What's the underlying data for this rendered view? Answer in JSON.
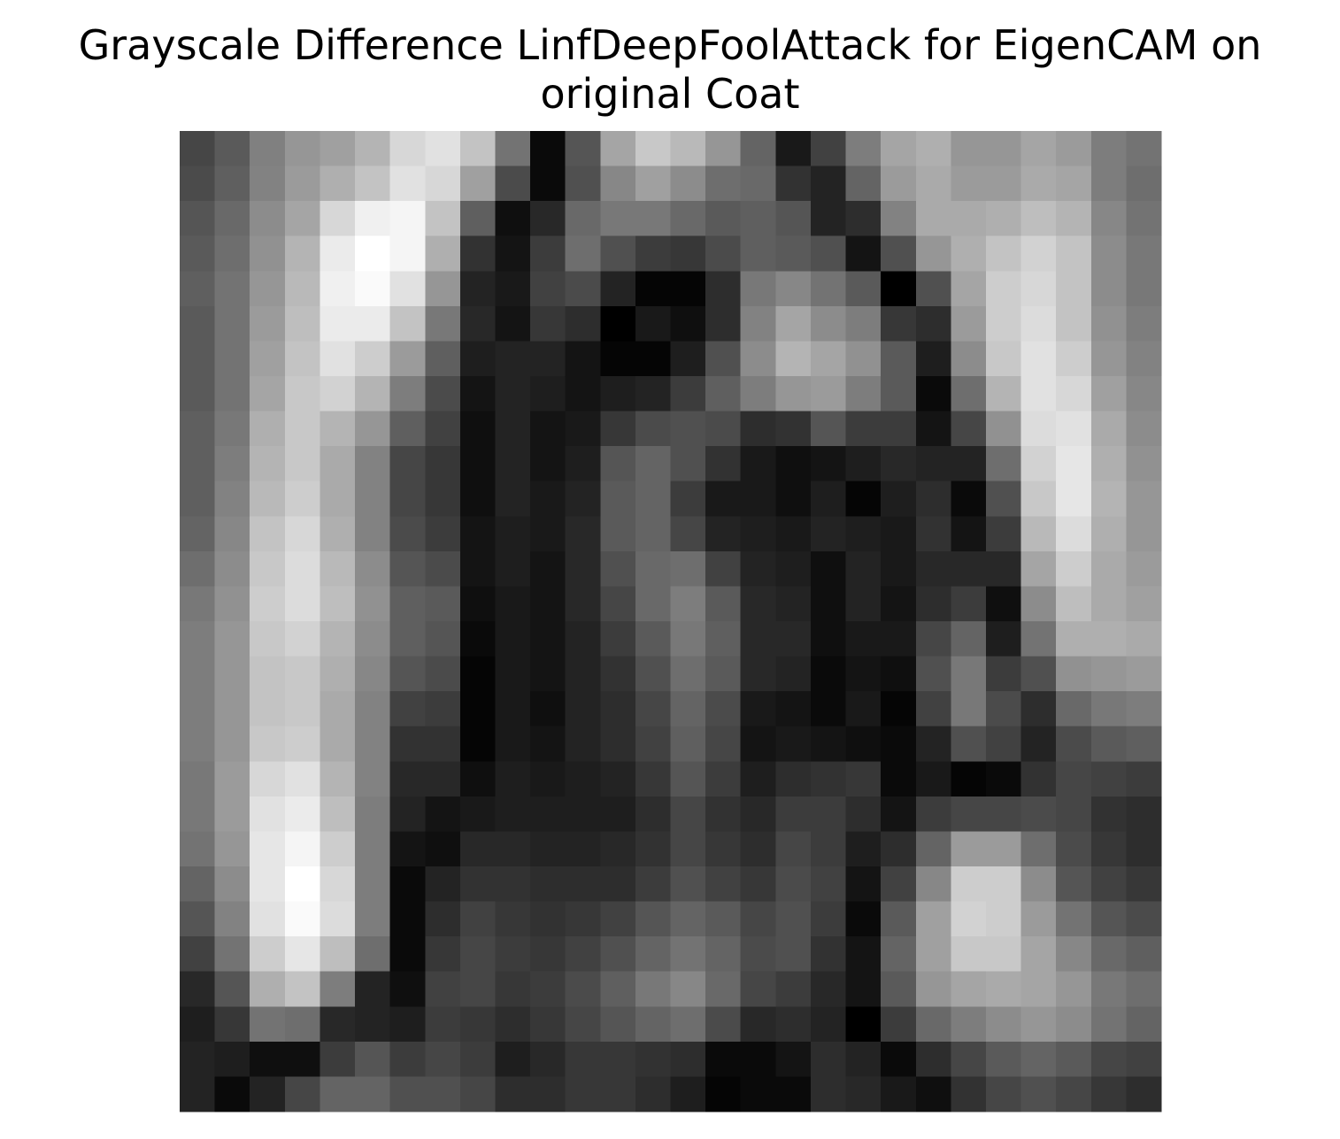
{
  "chart_data": {
    "type": "heatmap",
    "title": "Grayscale Difference LinfDeepFoolAttack for EigenCAM on original Coat",
    "colormap": "gray",
    "clim": [
      0,
      255
    ],
    "values": [
      [
        70,
        90,
        128,
        150,
        160,
        180,
        215,
        225,
        195,
        115,
        10,
        85,
        165,
        200,
        185,
        150,
        100,
        25,
        65,
        125,
        165,
        175,
        150,
        150,
        165,
        155,
        125,
        115
      ],
      [
        75,
        95,
        130,
        155,
        175,
        195,
        225,
        215,
        160,
        75,
        10,
        80,
        135,
        160,
        140,
        110,
        105,
        50,
        35,
        100,
        155,
        170,
        155,
        155,
        170,
        165,
        125,
        110
      ],
      [
        85,
        105,
        140,
        165,
        215,
        240,
        245,
        195,
        95,
        15,
        40,
        105,
        120,
        120,
        105,
        90,
        95,
        85,
        35,
        45,
        130,
        170,
        170,
        175,
        190,
        180,
        135,
        115
      ],
      [
        90,
        110,
        145,
        180,
        235,
        255,
        245,
        175,
        50,
        20,
        60,
        110,
        80,
        60,
        55,
        75,
        95,
        90,
        80,
        20,
        80,
        150,
        175,
        195,
        210,
        195,
        140,
        120
      ],
      [
        95,
        115,
        150,
        185,
        240,
        250,
        225,
        150,
        35,
        25,
        65,
        75,
        35,
        5,
        5,
        45,
        120,
        135,
        115,
        90,
        0,
        80,
        165,
        205,
        215,
        195,
        140,
        120
      ],
      [
        90,
        115,
        155,
        190,
        235,
        235,
        195,
        120,
        40,
        20,
        55,
        45,
        0,
        25,
        15,
        45,
        130,
        165,
        140,
        125,
        55,
        45,
        155,
        205,
        220,
        195,
        145,
        125
      ],
      [
        90,
        115,
        160,
        195,
        225,
        205,
        155,
        95,
        30,
        35,
        35,
        20,
        5,
        5,
        30,
        80,
        140,
        180,
        165,
        145,
        90,
        30,
        140,
        200,
        225,
        205,
        150,
        130
      ],
      [
        90,
        115,
        165,
        200,
        210,
        180,
        125,
        75,
        20,
        35,
        30,
        20,
        30,
        35,
        60,
        95,
        125,
        150,
        155,
        125,
        90,
        10,
        110,
        180,
        225,
        215,
        160,
        135
      ],
      [
        95,
        120,
        175,
        200,
        180,
        150,
        95,
        65,
        15,
        35,
        20,
        25,
        55,
        75,
        80,
        75,
        45,
        50,
        85,
        60,
        60,
        20,
        70,
        145,
        220,
        225,
        170,
        140
      ],
      [
        95,
        125,
        180,
        200,
        170,
        130,
        70,
        55,
        15,
        35,
        20,
        30,
        85,
        100,
        80,
        50,
        25,
        15,
        20,
        30,
        40,
        35,
        35,
        110,
        210,
        230,
        175,
        145
      ],
      [
        95,
        130,
        185,
        205,
        170,
        130,
        70,
        55,
        15,
        35,
        25,
        35,
        90,
        100,
        60,
        25,
        25,
        15,
        30,
        5,
        30,
        45,
        10,
        80,
        200,
        230,
        180,
        150
      ],
      [
        100,
        135,
        195,
        215,
        175,
        130,
        75,
        60,
        20,
        30,
        25,
        40,
        90,
        100,
        70,
        35,
        30,
        25,
        35,
        30,
        25,
        50,
        20,
        60,
        185,
        220,
        175,
        150
      ],
      [
        110,
        140,
        200,
        220,
        185,
        140,
        85,
        75,
        20,
        30,
        20,
        40,
        80,
        105,
        110,
        65,
        35,
        30,
        15,
        35,
        25,
        40,
        40,
        40,
        165,
        205,
        170,
        155
      ],
      [
        120,
        145,
        205,
        220,
        190,
        145,
        95,
        90,
        15,
        25,
        20,
        40,
        70,
        105,
        125,
        90,
        40,
        35,
        15,
        35,
        20,
        45,
        60,
        15,
        140,
        190,
        170,
        160
      ],
      [
        125,
        150,
        200,
        210,
        180,
        140,
        95,
        85,
        10,
        25,
        20,
        35,
        60,
        90,
        120,
        95,
        40,
        40,
        15,
        25,
        25,
        70,
        100,
        30,
        115,
        175,
        175,
        170
      ],
      [
        125,
        150,
        195,
        200,
        175,
        135,
        85,
        75,
        5,
        25,
        20,
        35,
        50,
        80,
        110,
        90,
        40,
        35,
        10,
        20,
        15,
        80,
        120,
        60,
        80,
        145,
        150,
        155
      ],
      [
        125,
        150,
        195,
        200,
        170,
        130,
        65,
        60,
        5,
        25,
        15,
        35,
        45,
        70,
        100,
        75,
        25,
        20,
        10,
        25,
        5,
        65,
        120,
        75,
        45,
        105,
        120,
        125
      ],
      [
        125,
        150,
        200,
        205,
        170,
        130,
        50,
        50,
        5,
        25,
        20,
        35,
        45,
        65,
        95,
        70,
        20,
        25,
        20,
        15,
        10,
        35,
        80,
        65,
        35,
        75,
        90,
        95
      ],
      [
        120,
        155,
        215,
        225,
        180,
        130,
        40,
        40,
        15,
        30,
        25,
        30,
        35,
        55,
        85,
        60,
        30,
        45,
        50,
        55,
        10,
        25,
        5,
        10,
        50,
        70,
        65,
        60
      ],
      [
        120,
        155,
        225,
        235,
        190,
        125,
        35,
        20,
        25,
        30,
        30,
        30,
        30,
        45,
        70,
        50,
        40,
        60,
        60,
        45,
        20,
        60,
        70,
        70,
        75,
        70,
        50,
        45
      ],
      [
        115,
        150,
        230,
        245,
        205,
        125,
        20,
        15,
        40,
        40,
        35,
        35,
        40,
        50,
        70,
        55,
        45,
        70,
        60,
        30,
        45,
        100,
        155,
        155,
        110,
        75,
        55,
        45
      ],
      [
        100,
        140,
        230,
        255,
        215,
        125,
        10,
        35,
        50,
        50,
        45,
        45,
        45,
        60,
        80,
        65,
        55,
        75,
        65,
        20,
        65,
        135,
        205,
        205,
        140,
        85,
        65,
        55
      ],
      [
        85,
        130,
        225,
        250,
        220,
        125,
        10,
        45,
        65,
        55,
        50,
        55,
        65,
        85,
        100,
        90,
        70,
        80,
        60,
        10,
        90,
        160,
        210,
        205,
        155,
        115,
        85,
        75
      ],
      [
        65,
        115,
        205,
        230,
        190,
        110,
        10,
        55,
        70,
        60,
        55,
        65,
        80,
        100,
        115,
        100,
        75,
        80,
        50,
        20,
        100,
        160,
        200,
        200,
        165,
        135,
        105,
        95
      ],
      [
        40,
        85,
        175,
        195,
        125,
        35,
        15,
        65,
        70,
        55,
        60,
        75,
        95,
        120,
        135,
        105,
        70,
        60,
        40,
        20,
        90,
        150,
        165,
        170,
        165,
        150,
        120,
        110
      ],
      [
        30,
        55,
        115,
        110,
        40,
        35,
        30,
        60,
        55,
        45,
        55,
        70,
        85,
        100,
        110,
        75,
        40,
        45,
        35,
        0,
        60,
        105,
        125,
        140,
        150,
        140,
        115,
        100
      ],
      [
        35,
        30,
        15,
        15,
        60,
        85,
        60,
        70,
        60,
        30,
        40,
        55,
        55,
        50,
        45,
        10,
        10,
        20,
        45,
        35,
        10,
        45,
        70,
        90,
        100,
        90,
        70,
        65
      ],
      [
        35,
        10,
        35,
        70,
        100,
        100,
        80,
        80,
        70,
        45,
        45,
        55,
        55,
        45,
        30,
        5,
        10,
        10,
        45,
        40,
        25,
        15,
        50,
        70,
        80,
        70,
        55,
        45
      ]
    ]
  }
}
